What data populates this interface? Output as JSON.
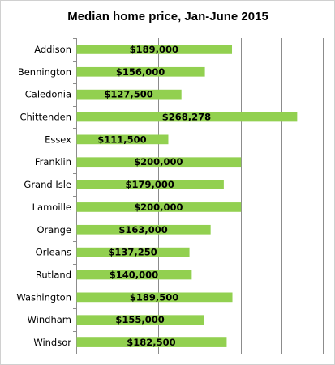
{
  "chart_data": {
    "type": "bar",
    "orientation": "horizontal",
    "title": "Median home price, Jan-June 2015",
    "xlabel": "",
    "ylabel": "",
    "categories": [
      "Addison",
      "Bennington",
      "Caledonia",
      "Chittenden",
      "Essex",
      "Franklin",
      "Grand Isle",
      "Lamoille",
      "Orange",
      "Orleans",
      "Rutland",
      "Washington",
      "Windham",
      "Windsor"
    ],
    "values": [
      189000,
      156000,
      127500,
      268278,
      111500,
      200000,
      179000,
      200000,
      163000,
      137250,
      140000,
      189500,
      155000,
      182500
    ],
    "data_labels": [
      "$189,000",
      "$156,000",
      "$127,500",
      "$268,278",
      "$111,500",
      "$200,000",
      "$179,000",
      "$200,000",
      "$163,000",
      "$137,250",
      "$140,000",
      "$189,500",
      "$155,000",
      "$182,500"
    ],
    "xlim": [
      0,
      300000
    ],
    "x_gridline_step": 50000,
    "x_tick_labels_visible": false,
    "grid": true,
    "legend": "none",
    "bar_color": "#92d050"
  }
}
